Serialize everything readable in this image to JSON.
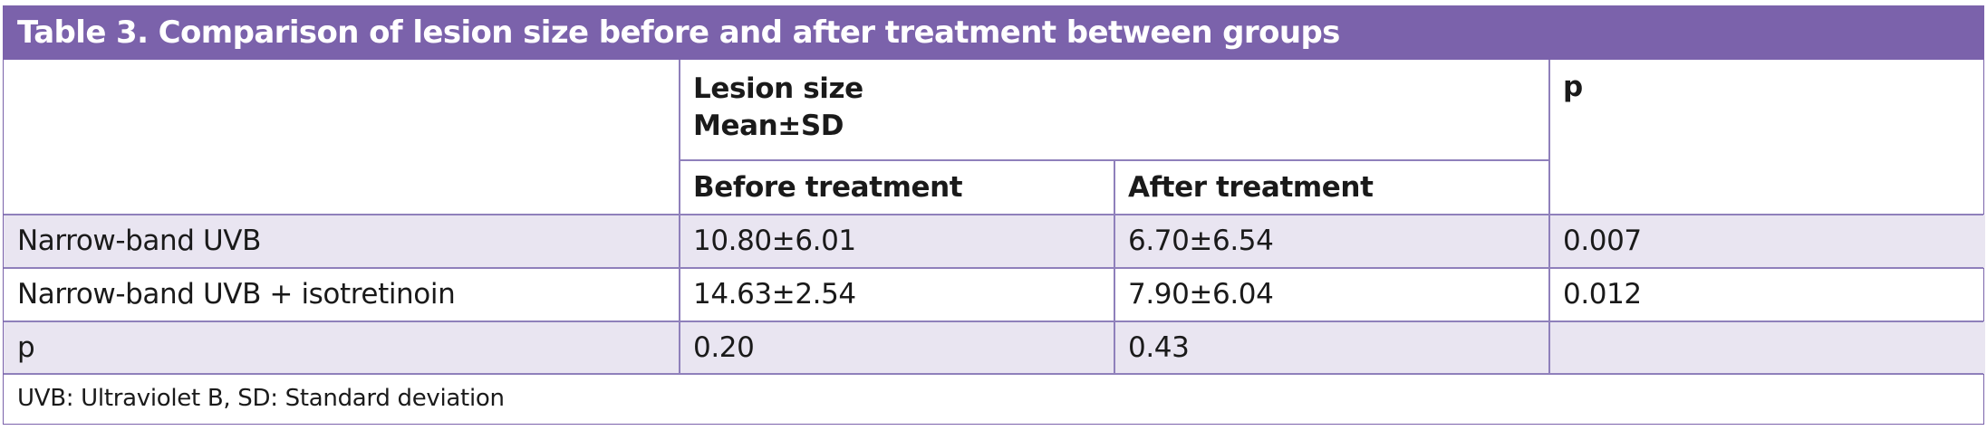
{
  "table": {
    "title": "Table 3. Comparison of lesion size before and after treatment between groups",
    "header": {
      "group_header_line1": "Lesion size",
      "group_header_line2": "Mean±SD",
      "p_header": "p",
      "before_header": "Before treatment",
      "after_header": "After treatment"
    },
    "rows": [
      {
        "label": "Narrow-band UVB",
        "before": "10.80±6.01",
        "after": "6.70±6.54",
        "p": "0.007"
      },
      {
        "label": "Narrow-band UVB + isotretinoin",
        "before": "14.63±2.54",
        "after": "7.90±6.04",
        "p": "0.012"
      },
      {
        "label": "p",
        "before": "0.20",
        "after": "0.43",
        "p": ""
      }
    ],
    "footnote": "UVB: Ultraviolet B, SD: Standard deviation",
    "colors": {
      "title_background": "#7b62ab",
      "row_shade": "#e9e5f1",
      "grid_lines": "#8f80bb"
    }
  }
}
